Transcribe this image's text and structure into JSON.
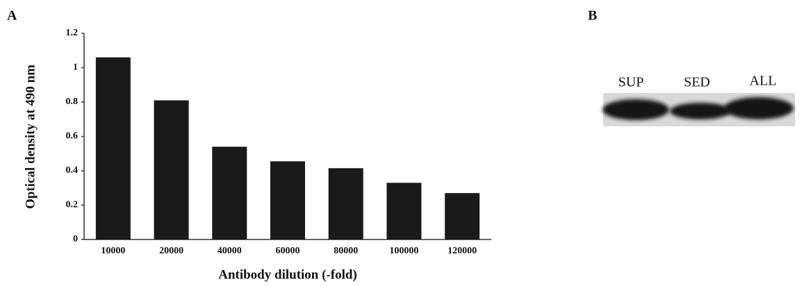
{
  "panels": [
    "A",
    "B"
  ],
  "chart_data": {
    "type": "bar",
    "y_label": "Optical density at 490 nm",
    "x_label": "Antibody dilution (-fold)",
    "categories": [
      "10000",
      "20000",
      "40000",
      "60000",
      "80000",
      "100000",
      "120000"
    ],
    "values": [
      1.06,
      0.81,
      0.54,
      0.455,
      0.415,
      0.33,
      0.27
    ],
    "color": "#1a1a1a",
    "ylim": [
      0,
      1.2
    ],
    "yticks": [
      0,
      0.2,
      0.4,
      0.6,
      0.8,
      1,
      1.2
    ],
    "grid": false
  },
  "blot": {
    "lanes": [
      "SUP",
      "SED",
      "ALL"
    ]
  }
}
